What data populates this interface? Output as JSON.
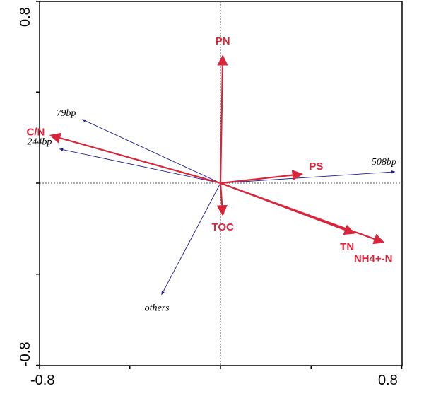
{
  "chart_data": {
    "type": "biplot",
    "xlim": [
      -0.8,
      0.8
    ],
    "ylim": [
      -0.8,
      0.8
    ],
    "x_tick_labels": {
      "min": "-0.8",
      "max": "0.8"
    },
    "y_tick_labels": {
      "min": "-0.8",
      "max": "0.8"
    },
    "zero_lines": true,
    "colors": {
      "environment": "#d9253a",
      "species": "#1f1f8f",
      "frame": "#000000",
      "zero_line": "#555555"
    },
    "environment_vectors": [
      {
        "label": "PN",
        "x": 0.01,
        "y": 0.56
      },
      {
        "label": "C/N",
        "x": -0.75,
        "y": 0.21
      },
      {
        "label": "PS",
        "x": 0.36,
        "y": 0.04
      },
      {
        "label": "TOC",
        "x": 0.01,
        "y": -0.14
      },
      {
        "label": "TN",
        "x": 0.59,
        "y": -0.22
      },
      {
        "label": "NH4+-N",
        "x": 0.72,
        "y": -0.26
      }
    ],
    "species_vectors": [
      {
        "label": "79bp",
        "x": -0.61,
        "y": 0.28
      },
      {
        "label": "244bp",
        "x": -0.71,
        "y": 0.15
      },
      {
        "label": "508bp",
        "x": 0.77,
        "y": 0.05
      },
      {
        "label": "others",
        "x": -0.26,
        "y": -0.49
      }
    ]
  }
}
